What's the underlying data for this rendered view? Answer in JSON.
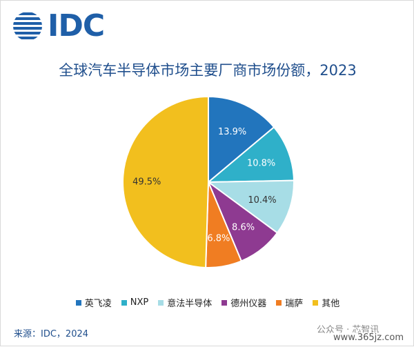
{
  "logo": {
    "text": "IDC"
  },
  "chart_data": {
    "type": "pie",
    "title": "全球汽车半导体市场主要厂商市场份额，2023",
    "start_angle_deg": 0,
    "direction": "clockwise",
    "slices": [
      {
        "name": "英飞凌",
        "value": 13.9,
        "label": "13.9%",
        "color": "#2275bd"
      },
      {
        "name": "NXP",
        "value": 10.8,
        "label": "10.8%",
        "color": "#2fb0c9"
      },
      {
        "name": "意法半导体",
        "value": 10.4,
        "label": "10.4%",
        "color": "#a7dde6"
      },
      {
        "name": "德州仪器",
        "value": 8.6,
        "label": "8.6%",
        "color": "#8e3a91"
      },
      {
        "name": "瑞萨",
        "value": 6.8,
        "label": "6.8%",
        "color": "#f07d22"
      },
      {
        "name": "其他",
        "value": 49.5,
        "label": "49.5%",
        "color": "#f2bf1e"
      }
    ],
    "legend_position": "bottom"
  },
  "source": "来源：IDC，2024",
  "watermark": {
    "line1": "公众号 · 芯智讯",
    "line2": "www.365jz.com"
  }
}
